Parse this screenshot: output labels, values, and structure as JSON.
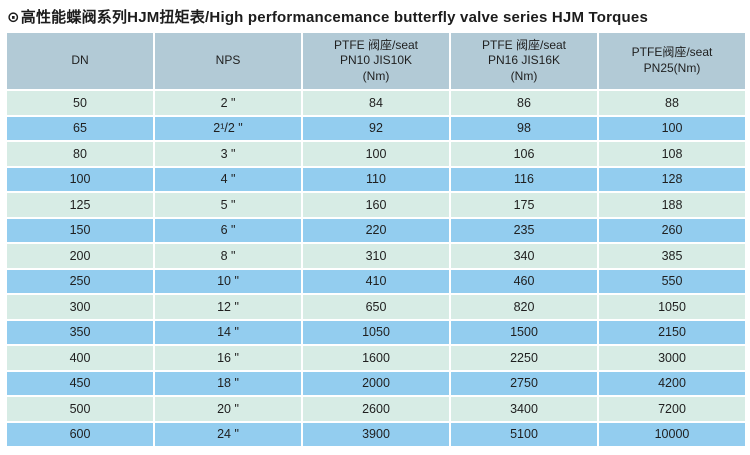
{
  "header": {
    "bullet": "⊙",
    "title": "高性能蝶阀系列HJM扭矩表/High performancemance butterfly valve series HJM Torques"
  },
  "colors": {
    "header_bg": "#b2cad6",
    "row_green": "#d7ece5",
    "row_blue": "#93cdef",
    "text": "#1f1f1f"
  },
  "table": {
    "columns": [
      "DN",
      "NPS",
      "PTFE 阀座/seat\nPN10 JIS10K\n(Nm)",
      "PTFE 阀座/seat\nPN16 JIS16K\n(Nm)",
      "PTFE阀座/seat\nPN25(Nm)"
    ],
    "rows": [
      {
        "dn": "50",
        "nps": "2 \"",
        "pn10": "84",
        "pn16": "86",
        "pn25": "88"
      },
      {
        "dn": "65",
        "nps": "2¹/2 \"",
        "pn10": "92",
        "pn16": "98",
        "pn25": "100"
      },
      {
        "dn": "80",
        "nps": "3 \"",
        "pn10": "100",
        "pn16": "106",
        "pn25": "108"
      },
      {
        "dn": "100",
        "nps": "4 \"",
        "pn10": "110",
        "pn16": "116",
        "pn25": "128"
      },
      {
        "dn": "125",
        "nps": "5 \"",
        "pn10": "160",
        "pn16": "175",
        "pn25": "188"
      },
      {
        "dn": "150",
        "nps": "6 \"",
        "pn10": "220",
        "pn16": "235",
        "pn25": "260"
      },
      {
        "dn": "200",
        "nps": "8 \"",
        "pn10": "310",
        "pn16": "340",
        "pn25": "385"
      },
      {
        "dn": "250",
        "nps": "10 \"",
        "pn10": "410",
        "pn16": "460",
        "pn25": "550"
      },
      {
        "dn": "300",
        "nps": "12 \"",
        "pn10": "650",
        "pn16": "820",
        "pn25": "1050"
      },
      {
        "dn": "350",
        "nps": "14 \"",
        "pn10": "1050",
        "pn16": "1500",
        "pn25": "2150"
      },
      {
        "dn": "400",
        "nps": "16 \"",
        "pn10": "1600",
        "pn16": "2250",
        "pn25": "3000"
      },
      {
        "dn": "450",
        "nps": "18 \"",
        "pn10": "2000",
        "pn16": "2750",
        "pn25": "4200"
      },
      {
        "dn": "500",
        "nps": "20 \"",
        "pn10": "2600",
        "pn16": "3400",
        "pn25": "7200"
      },
      {
        "dn": "600",
        "nps": "24 \"",
        "pn10": "3900",
        "pn16": "5100",
        "pn25": "10000"
      }
    ]
  }
}
